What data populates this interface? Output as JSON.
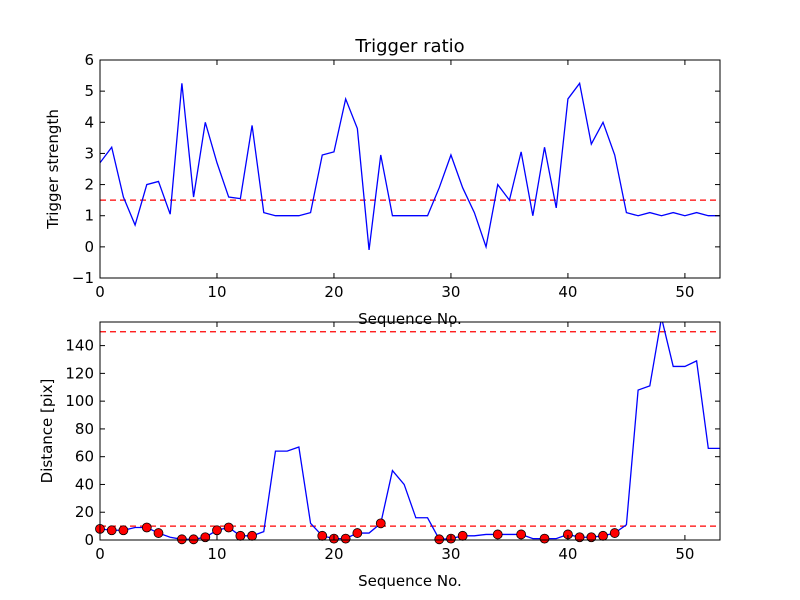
{
  "chart_data": [
    {
      "type": "line",
      "title": "Trigger ratio",
      "xlabel": "Sequence No.",
      "ylabel": "Trigger strength",
      "xlim": [
        0,
        53
      ],
      "ylim": [
        -1,
        6
      ],
      "xticks": [
        "0",
        "10",
        "20",
        "30",
        "40",
        "50"
      ],
      "yticks": [
        "−1",
        "0",
        "1",
        "2",
        "3",
        "4",
        "5",
        "6"
      ],
      "line_color": "#0000ff",
      "threshold": {
        "value": 1.5,
        "color": "#ff0000",
        "style": "dashed"
      },
      "x": [
        0,
        1,
        2,
        3,
        4,
        5,
        6,
        7,
        8,
        9,
        10,
        11,
        12,
        13,
        14,
        15,
        16,
        17,
        18,
        19,
        20,
        21,
        22,
        23,
        24,
        25,
        26,
        27,
        28,
        29,
        30,
        31,
        32,
        33,
        34,
        35,
        36,
        37,
        38,
        39,
        40,
        41,
        42,
        43,
        44,
        45,
        46,
        47,
        48,
        49,
        50,
        51,
        52,
        53
      ],
      "values": [
        2.7,
        3.2,
        1.6,
        0.7,
        2.0,
        2.1,
        1.05,
        5.25,
        1.6,
        4.0,
        2.7,
        1.6,
        1.55,
        3.9,
        1.1,
        1.0,
        1.0,
        1.0,
        1.1,
        2.95,
        3.05,
        4.75,
        3.8,
        -0.1,
        2.95,
        1.0,
        1.0,
        1.0,
        1.0,
        1.9,
        2.95,
        1.9,
        1.1,
        0.0,
        2.0,
        1.5,
        3.05,
        1.0,
        3.2,
        1.25,
        4.75,
        5.25,
        3.3,
        4.0,
        2.95,
        1.1,
        1.0,
        1.1,
        1.0,
        1.1,
        1.0,
        1.1,
        1.0,
        1.0
      ]
    },
    {
      "type": "line",
      "title": "",
      "xlabel": "Sequence No.",
      "ylabel": "Distance [pix]",
      "xlim": [
        0,
        53
      ],
      "ylim": [
        0,
        157
      ],
      "xticks": [
        "0",
        "10",
        "20",
        "30",
        "40",
        "50"
      ],
      "yticks": [
        "0",
        "20",
        "40",
        "60",
        "80",
        "100",
        "120",
        "140"
      ],
      "line_color": "#0000ff",
      "marker_color": "#ff0000",
      "thresholds": [
        {
          "value": 10,
          "color": "#ff0000",
          "style": "dashed"
        },
        {
          "value": 150,
          "color": "#ff0000",
          "style": "dashed"
        }
      ],
      "x": [
        0,
        1,
        2,
        3,
        4,
        5,
        6,
        7,
        8,
        9,
        10,
        11,
        12,
        13,
        14,
        15,
        16,
        17,
        18,
        19,
        20,
        21,
        22,
        23,
        24,
        25,
        26,
        27,
        28,
        29,
        30,
        31,
        32,
        33,
        34,
        35,
        36,
        37,
        38,
        39,
        40,
        41,
        42,
        43,
        44,
        45,
        46,
        47,
        48,
        49,
        50,
        51,
        52,
        53
      ],
      "values": [
        8,
        7,
        7,
        9,
        9,
        5,
        2,
        0.5,
        0.5,
        2,
        7,
        9,
        3,
        3,
        6,
        64,
        64,
        67,
        12,
        3,
        1,
        1,
        5,
        5,
        12,
        50,
        40,
        16,
        16,
        0.5,
        1,
        3,
        3,
        4,
        4,
        4,
        4,
        1,
        1,
        1,
        4,
        2,
        2,
        3,
        5,
        11,
        108,
        111,
        160,
        125,
        125,
        129,
        66,
        66
      ],
      "markers": [
        {
          "x": 0,
          "y": 8
        },
        {
          "x": 1,
          "y": 7
        },
        {
          "x": 2,
          "y": 7
        },
        {
          "x": 4,
          "y": 9
        },
        {
          "x": 5,
          "y": 5
        },
        {
          "x": 7,
          "y": 0.5
        },
        {
          "x": 8,
          "y": 0.5
        },
        {
          "x": 9,
          "y": 2
        },
        {
          "x": 10,
          "y": 7
        },
        {
          "x": 11,
          "y": 9
        },
        {
          "x": 12,
          "y": 3
        },
        {
          "x": 13,
          "y": 3
        },
        {
          "x": 19,
          "y": 3
        },
        {
          "x": 20,
          "y": 1
        },
        {
          "x": 21,
          "y": 1
        },
        {
          "x": 22,
          "y": 5
        },
        {
          "x": 24,
          "y": 12
        },
        {
          "x": 29,
          "y": 0.5
        },
        {
          "x": 30,
          "y": 1
        },
        {
          "x": 31,
          "y": 3
        },
        {
          "x": 34,
          "y": 4
        },
        {
          "x": 36,
          "y": 4
        },
        {
          "x": 38,
          "y": 1
        },
        {
          "x": 40,
          "y": 4
        },
        {
          "x": 41,
          "y": 2
        },
        {
          "x": 42,
          "y": 2
        },
        {
          "x": 43,
          "y": 3
        },
        {
          "x": 44,
          "y": 5
        }
      ]
    }
  ]
}
